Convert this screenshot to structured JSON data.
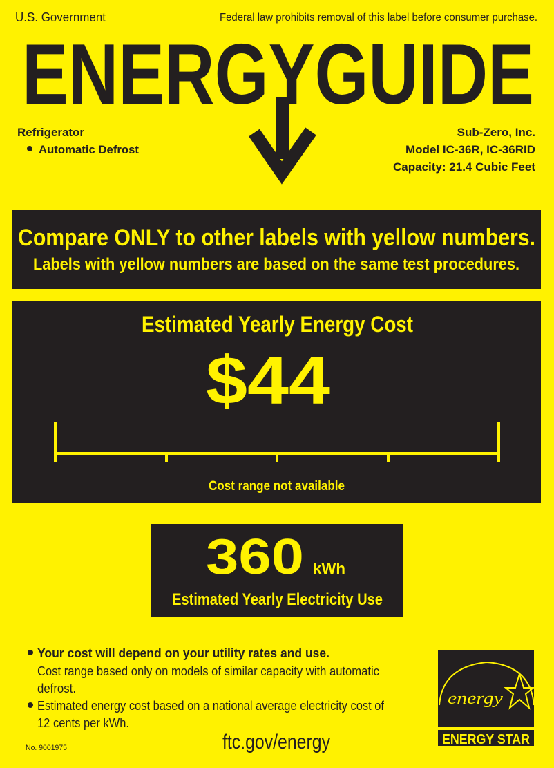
{
  "header": {
    "issuer": "U.S. Government",
    "notice": "Federal law prohibits removal of this label before consumer purchase.",
    "title": "ENERGYGUIDE"
  },
  "appliance": {
    "type": "Refrigerator",
    "feature": "Automatic Defrost"
  },
  "manufacturer": {
    "name": "Sub-Zero, Inc.",
    "model": "Model IC-36R, IC-36RID",
    "capacity": "Capacity: 21.4 Cubic Feet"
  },
  "compare_banner": {
    "headline": "Compare ONLY to other labels with yellow numbers.",
    "subline": "Labels with yellow numbers are based on the same test procedures."
  },
  "cost": {
    "heading": "Estimated Yearly Energy Cost",
    "value": "$44",
    "range_note": "Cost range not available"
  },
  "electricity": {
    "value": "360",
    "unit": "kWh",
    "label": "Estimated Yearly Electricity Use"
  },
  "footnotes": {
    "bullet1_bold": "Your cost will depend on your utility rates and use.",
    "bullet1_line2": "Cost range based only on models of similar capacity with automatic",
    "bullet1_line3": "defrost.",
    "bullet2_line1": "Estimated energy cost based on a national average electricity cost of",
    "bullet2_line2": "12 cents per kWh.",
    "label_number": "No. 9001975",
    "website": "ftc.gov/energy"
  },
  "energy_star": {
    "script": "energy",
    "label": "ENERGY STAR"
  },
  "colors": {
    "label_yellow": "#fff200",
    "panel_dark": "#231f20"
  }
}
